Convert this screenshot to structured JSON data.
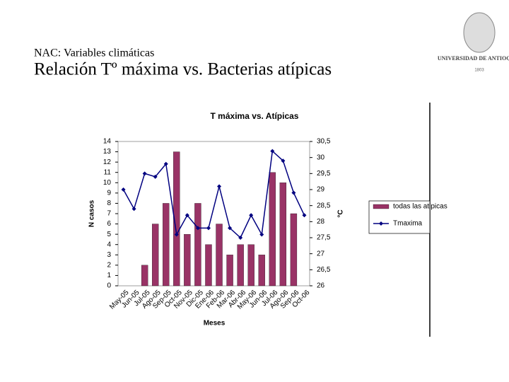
{
  "header": {
    "subtitle": "NAC: Variables climáticas",
    "title": "Relación Tº máxima vs. Bacterias atípicas",
    "logo_name": "UNIVERSIDAD DE ANTIOQUIA",
    "logo_year": "1803"
  },
  "chart_data": {
    "type": "bar",
    "title": "T máxima vs. Atípicas",
    "x_label": "Meses",
    "y_label": "N casos",
    "y2_label": "°C",
    "categories": [
      "May-05",
      "Jun-05",
      "Jul-05",
      "Ago-05",
      "Sep-05",
      "Oct-05",
      "Nov-05",
      "Dic-05",
      "Ene-06",
      "Feb-06",
      "Mar-06",
      "Abr-06",
      "May-06",
      "Jun-06",
      "Jul-06",
      "Ago-06",
      "Sep-06",
      "Oct-06"
    ],
    "series": [
      {
        "name": "todas las atipicas",
        "type": "bar",
        "color": "#993366",
        "values": [
          0,
          0,
          2,
          6,
          8,
          13,
          5,
          8,
          4,
          6,
          3,
          4,
          4,
          3,
          11,
          10,
          7,
          0
        ]
      },
      {
        "name": "Tmaxima",
        "type": "line",
        "axis": "y2",
        "color": "#000080",
        "values": [
          29.0,
          28.4,
          29.5,
          29.4,
          29.8,
          27.6,
          28.2,
          27.8,
          27.8,
          29.1,
          27.8,
          27.5,
          28.2,
          27.6,
          30.2,
          29.9,
          28.9,
          28.2
        ]
      }
    ],
    "ylim": [
      0,
      14
    ],
    "yticks": [
      0,
      1,
      2,
      3,
      4,
      5,
      6,
      7,
      8,
      9,
      10,
      11,
      12,
      13,
      14
    ],
    "y2lim": [
      26,
      30.5
    ],
    "y2ticks": [
      26,
      {
        "value": 26.5,
        "label": "26,5"
      },
      27,
      {
        "value": 27.5,
        "label": "27,5"
      },
      28,
      {
        "value": 28.5,
        "label": "28,5"
      },
      29,
      {
        "value": 29.5,
        "label": "29,5"
      },
      30,
      {
        "value": 30.5,
        "label": "30,5"
      }
    ],
    "legend": "right"
  }
}
